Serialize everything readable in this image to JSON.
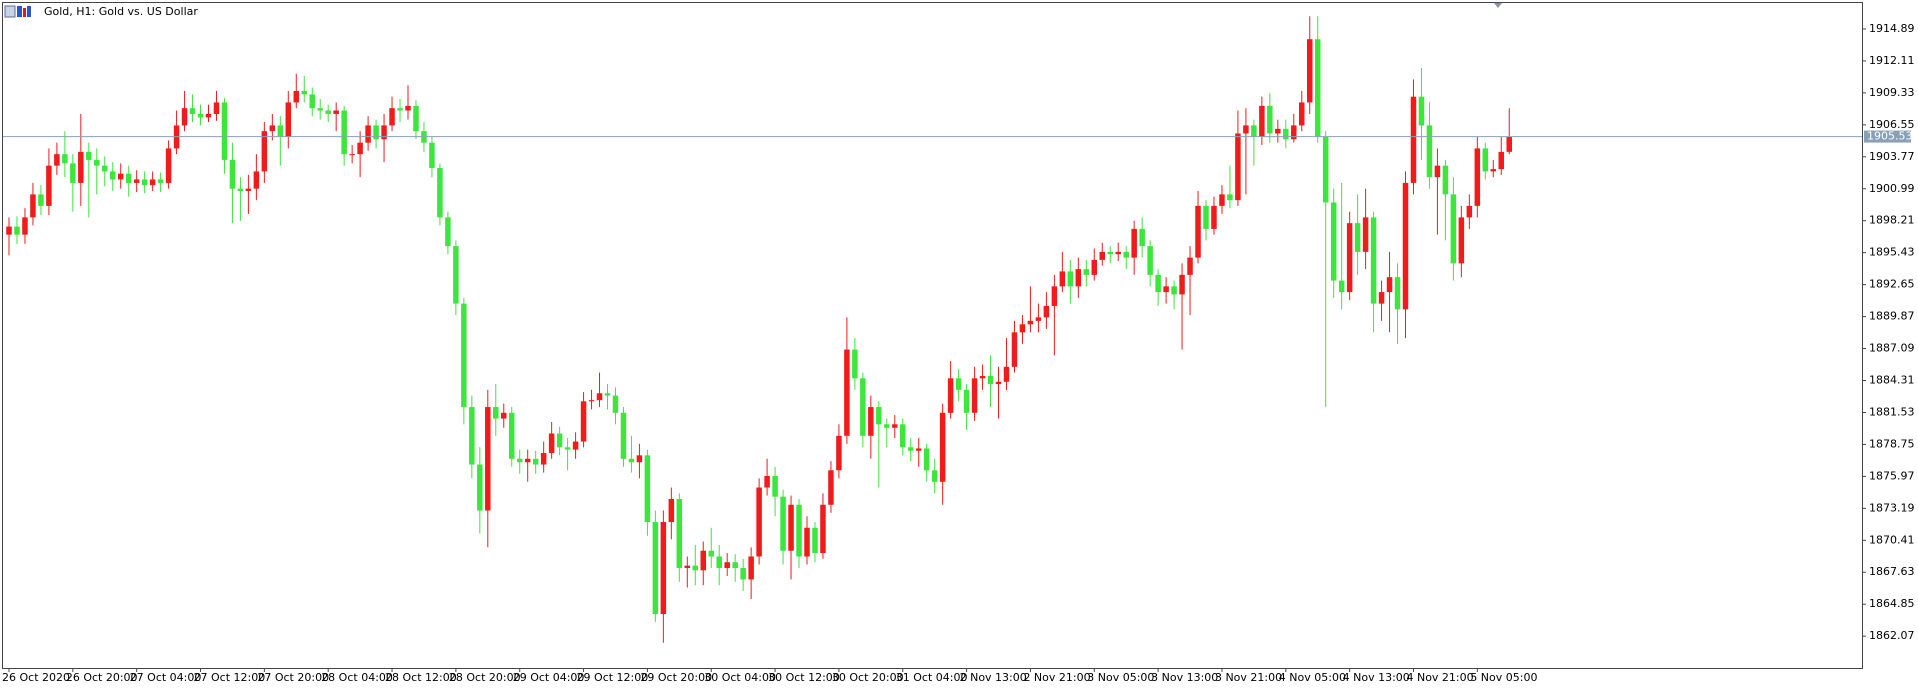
{
  "chart_data": {
    "type": "candlestick",
    "title": "Gold, H1:  Gold vs. US Dollar",
    "up_color": "#f01b1b",
    "down_color": "#3ce63c",
    "price_line_color": "#8aa0b8",
    "grid": false,
    "ylim": [
      1859.3,
      1917.15
    ],
    "yticks": [
      1914.89,
      1912.11,
      1909.33,
      1906.55,
      1903.77,
      1900.99,
      1898.21,
      1895.43,
      1892.65,
      1889.87,
      1887.09,
      1884.31,
      1881.53,
      1878.75,
      1875.97,
      1873.19,
      1870.41,
      1867.63,
      1864.85,
      1862.07
    ],
    "categories": [
      "26 Oct 2020",
      null,
      null,
      null,
      null,
      null,
      null,
      null,
      "26 Oct 20:00",
      null,
      null,
      null,
      null,
      null,
      null,
      null,
      "27 Oct 04:00",
      null,
      null,
      null,
      null,
      null,
      null,
      null,
      "27 Oct 12:00",
      null,
      null,
      null,
      null,
      null,
      null,
      null,
      "27 Oct 20:00",
      null,
      null,
      null,
      null,
      null,
      null,
      null,
      "28 Oct 04:00",
      null,
      null,
      null,
      null,
      null,
      null,
      null,
      "28 Oct 12:00",
      null,
      null,
      null,
      null,
      null,
      null,
      null,
      "28 Oct 20:00",
      null,
      null,
      null,
      null,
      null,
      null,
      null,
      "29 Oct 04:00",
      null,
      null,
      null,
      null,
      null,
      null,
      null,
      "29 Oct 12:00",
      null,
      null,
      null,
      null,
      null,
      null,
      null,
      "29 Oct 20:00",
      null,
      null,
      null,
      null,
      null,
      null,
      null,
      "30 Oct 04:00",
      null,
      null,
      null,
      null,
      null,
      null,
      null,
      "30 Oct 12:00",
      null,
      null,
      null,
      null,
      null,
      null,
      null,
      "30 Oct 20:00",
      null,
      null,
      null,
      null,
      null,
      null,
      null,
      "31 Oct 04:00",
      null,
      null,
      null,
      null,
      null,
      null,
      null,
      "2 Nov 13:00",
      null,
      null,
      null,
      null,
      null,
      null,
      null,
      "2 Nov 21:00",
      null,
      null,
      null,
      null,
      null,
      null,
      null,
      "3 Nov 05:00",
      null,
      null,
      null,
      null,
      null,
      null,
      null,
      "3 Nov 13:00",
      null,
      null,
      null,
      null,
      null,
      null,
      null,
      "3 Nov 21:00",
      null,
      null,
      null,
      null,
      null,
      null,
      null,
      "4 Nov 05:00",
      null,
      null,
      null,
      null,
      null,
      null,
      null,
      "4 Nov 13:00",
      null,
      null,
      null,
      null,
      null,
      null,
      null,
      "4 Nov 21:00",
      null,
      null,
      null,
      null,
      null,
      null,
      null,
      "5 Nov 05:00",
      null,
      null,
      null,
      null
    ],
    "open": [
      1897.0,
      1897.7,
      1897.0,
      1898.5,
      1900.5,
      1899.5,
      1903.0,
      1904.0,
      1903.2,
      1901.5,
      1904.2,
      1903.5,
      1903.0,
      1902.5,
      1901.8,
      1902.3,
      1901.5,
      1901.8,
      1901.3,
      1901.8,
      1901.5,
      1904.5,
      1906.5,
      1908.0,
      1907.5,
      1907.2,
      1907.5,
      1908.5,
      1903.5,
      1901.0,
      1900.8,
      1901.0,
      1902.5,
      1906.0,
      1906.5,
      1905.5,
      1908.5,
      1909.5,
      1909.2,
      1908.0,
      1907.8,
      1907.5,
      1907.8,
      1904.0,
      1904.0,
      1905.0,
      1906.5,
      1905.3,
      1906.5,
      1908.0,
      1907.8,
      1908.2,
      1906.0,
      1905.0,
      1902.8,
      1898.5,
      1896.0,
      1891.0,
      1882.0,
      1877.0,
      1873.0,
      1882.0,
      1881.0,
      1881.5,
      1877.5,
      1877.2,
      1877.5,
      1877.0,
      1878.0,
      1879.7,
      1878.5,
      1878.3,
      1879.0,
      1882.5,
      1882.6,
      1883.2,
      1883.0,
      1881.5,
      1877.5,
      1877.2,
      1877.8,
      1872.0,
      1864.0,
      1872.0,
      1874.0,
      1868.0,
      1868.2,
      1867.8,
      1869.5,
      1869.0,
      1868.0,
      1868.5,
      1868.0,
      1867.0,
      1869.0,
      1875.0,
      1876.0,
      1874.2,
      1869.5,
      1873.5,
      1869.0,
      1871.5,
      1869.3,
      1873.5,
      1876.5,
      1879.5,
      1887.0,
      1884.5,
      1879.5,
      1882.0,
      1880.5,
      1880.2,
      1880.5,
      1878.5,
      1878.2,
      1878.4,
      1876.5,
      1875.5,
      1881.5,
      1884.5,
      1883.5,
      1881.5,
      1884.5,
      1884.7,
      1884.0,
      1884.2,
      1885.5,
      1888.5,
      1889.2,
      1889.5,
      1889.8,
      1890.8,
      1892.5,
      1893.8,
      1892.5,
      1894.0,
      1893.5,
      1894.8,
      1895.5,
      1895.3,
      1895.5,
      1895.0,
      1897.5,
      1896.0,
      1893.5,
      1892.0,
      1892.5,
      1891.8,
      1893.5,
      1895.0,
      1899.5,
      1897.5,
      1899.5,
      1900.5,
      1900.0,
      1905.8,
      1906.5,
      1905.5,
      1908.2,
      1905.8,
      1906.2,
      1905.3,
      1906.5,
      1908.5,
      1914.0,
      1905.5,
      1899.8,
      1893.0,
      1892.0,
      1898.0,
      1895.5,
      1898.5,
      1891.0,
      1892.0,
      1893.3,
      1890.5,
      1901.5,
      1909.0,
      1906.5,
      1902.0,
      1903.0,
      1900.5,
      1894.5,
      1898.5,
      1899.5,
      1904.5,
      1902.5,
      1902.7,
      1904.2
    ],
    "high": [
      1898.5,
      1898.6,
      1899.3,
      1901.5,
      1901.3,
      1904.5,
      1905.0,
      1906.0,
      1904.0,
      1907.5,
      1905.0,
      1904.5,
      1903.8,
      1903.3,
      1903.2,
      1903.0,
      1902.6,
      1902.5,
      1902.5,
      1902.4,
      1905.2,
      1907.8,
      1909.5,
      1909.2,
      1908.3,
      1908.3,
      1909.5,
      1908.9,
      1905.0,
      1902.0,
      1902.2,
      1904.0,
      1906.8,
      1907.5,
      1907.3,
      1909.5,
      1911.0,
      1910.8,
      1909.8,
      1908.8,
      1908.3,
      1908.5,
      1908.2,
      1904.8,
      1906.0,
      1907.3,
      1907.0,
      1907.5,
      1909.0,
      1908.8,
      1910.0,
      1908.7,
      1906.8,
      1905.5,
      1903.2,
      1899.0,
      1896.5,
      1891.5,
      1883.0,
      1878.5,
      1883.5,
      1884.0,
      1882.3,
      1882.0,
      1878.3,
      1878.3,
      1878.2,
      1879.0,
      1880.7,
      1880.3,
      1879.3,
      1879.8,
      1883.3,
      1883.5,
      1885.0,
      1884.0,
      1883.7,
      1882.0,
      1879.5,
      1878.8,
      1878.3,
      1873.0,
      1873.0,
      1875.0,
      1874.5,
      1869.0,
      1870.0,
      1870.3,
      1871.5,
      1870.0,
      1869.3,
      1869.2,
      1868.8,
      1869.8,
      1875.8,
      1877.5,
      1876.8,
      1874.8,
      1874.3,
      1874.0,
      1872.5,
      1872.0,
      1874.5,
      1877.3,
      1880.5,
      1889.8,
      1888.0,
      1885.0,
      1883.0,
      1882.5,
      1881.0,
      1881.3,
      1881.0,
      1879.3,
      1879.3,
      1878.8,
      1877.5,
      1882.3,
      1886.0,
      1885.3,
      1884.0,
      1885.5,
      1885.7,
      1886.5,
      1885.5,
      1888.0,
      1889.5,
      1890.0,
      1892.5,
      1891.0,
      1892.0,
      1893.5,
      1895.5,
      1894.8,
      1895.0,
      1894.8,
      1895.8,
      1896.3,
      1896.0,
      1896.3,
      1896.0,
      1898.2,
      1898.5,
      1896.5,
      1894.0,
      1893.3,
      1893.0,
      1894.5,
      1896.0,
      1900.8,
      1900.0,
      1900.3,
      1901.3,
      1903.0,
      1907.8,
      1908.0,
      1907.0,
      1909.0,
      1909.3,
      1907.0,
      1907.0,
      1907.5,
      1909.5,
      1916.0,
      1916.0,
      1906.0,
      1901.0,
      1901.5,
      1899.0,
      1900.5,
      1901.0,
      1899.0,
      1893.0,
      1895.5,
      1894.5,
      1902.5,
      1910.5,
      1911.5,
      1908.5,
      1904.5,
      1903.5,
      1902.0,
      1899.5,
      1900.5,
      1905.5,
      1905.0,
      1903.5,
      1905.5,
      1908.0
    ],
    "low": [
      1895.2,
      1896.2,
      1896.2,
      1897.8,
      1898.7,
      1898.7,
      1902.2,
      1902.0,
      1899.0,
      1899.5,
      1898.5,
      1900.5,
      1901.2,
      1900.8,
      1901.0,
      1900.3,
      1900.7,
      1900.6,
      1900.8,
      1900.7,
      1901.0,
      1904.0,
      1906.0,
      1906.8,
      1906.5,
      1906.8,
      1906.9,
      1902.3,
      1898.0,
      1898.2,
      1898.8,
      1900.0,
      1901.5,
      1905.2,
      1903.0,
      1904.5,
      1908.0,
      1908.5,
      1907.3,
      1907.0,
      1906.8,
      1906.0,
      1903.0,
      1903.2,
      1902.0,
      1904.3,
      1904.5,
      1903.3,
      1906.0,
      1906.8,
      1907.0,
      1905.3,
      1904.2,
      1902.0,
      1897.8,
      1895.3,
      1890.0,
      1880.5,
      1875.8,
      1871.0,
      1869.8,
      1879.5,
      1880.2,
      1876.8,
      1876.2,
      1875.5,
      1876.2,
      1876.3,
      1877.5,
      1877.8,
      1876.5,
      1877.5,
      1878.5,
      1881.8,
      1882.0,
      1881.8,
      1880.5,
      1876.8,
      1876.3,
      1875.8,
      1870.8,
      1863.3,
      1861.5,
      1870.5,
      1866.8,
      1866.3,
      1866.5,
      1866.5,
      1868.0,
      1866.5,
      1867.3,
      1866.8,
      1866.0,
      1865.3,
      1868.3,
      1874.3,
      1872.5,
      1868.3,
      1867.0,
      1868.0,
      1868.3,
      1868.5,
      1868.8,
      1872.8,
      1875.8,
      1878.8,
      1883.5,
      1878.5,
      1877.5,
      1875.0,
      1878.5,
      1879.3,
      1877.8,
      1877.3,
      1876.8,
      1875.5,
      1874.5,
      1873.5,
      1881.0,
      1882.5,
      1880.0,
      1880.8,
      1883.5,
      1882.0,
      1881.0,
      1883.5,
      1885.0,
      1887.5,
      1888.5,
      1888.5,
      1888.8,
      1886.5,
      1892.0,
      1891.0,
      1891.5,
      1892.5,
      1893.0,
      1894.3,
      1894.5,
      1894.7,
      1894.0,
      1893.5,
      1895.0,
      1892.5,
      1890.8,
      1891.0,
      1890.5,
      1887.0,
      1890.0,
      1894.5,
      1896.5,
      1897.0,
      1898.8,
      1899.3,
      1899.5,
      1900.5,
      1903.0,
      1904.8,
      1905.0,
      1905.0,
      1904.5,
      1905.0,
      1906.0,
      1907.5,
      1905.0,
      1882.0,
      1891.5,
      1890.5,
      1891.3,
      1893.5,
      1894.0,
      1888.5,
      1889.5,
      1888.5,
      1887.5,
      1888.0,
      1900.5,
      1903.5,
      1901.0,
      1897.0,
      1896.5,
      1893.0,
      1893.3,
      1897.5,
      1898.5,
      1901.8,
      1902.0,
      1902.2,
      1904.0
    ],
    "close": [
      1897.7,
      1897.0,
      1898.5,
      1900.5,
      1899.5,
      1903.0,
      1904.0,
      1903.2,
      1901.5,
      1904.2,
      1903.5,
      1903.0,
      1902.5,
      1901.8,
      1902.3,
      1901.5,
      1901.8,
      1901.3,
      1901.8,
      1901.5,
      1904.5,
      1906.5,
      1908.0,
      1907.5,
      1907.2,
      1907.5,
      1908.5,
      1903.5,
      1901.0,
      1900.8,
      1901.0,
      1902.5,
      1906.0,
      1906.5,
      1905.5,
      1908.5,
      1909.5,
      1909.2,
      1908.0,
      1907.8,
      1907.5,
      1907.8,
      1904.0,
      1904.0,
      1905.0,
      1906.5,
      1905.3,
      1906.5,
      1908.0,
      1907.8,
      1908.2,
      1906.0,
      1905.0,
      1902.8,
      1898.5,
      1896.0,
      1891.0,
      1882.0,
      1877.0,
      1873.0,
      1882.0,
      1881.0,
      1881.5,
      1877.5,
      1877.2,
      1877.5,
      1877.0,
      1878.0,
      1879.7,
      1878.5,
      1878.3,
      1879.0,
      1882.5,
      1882.6,
      1883.2,
      1883.0,
      1881.5,
      1877.5,
      1877.2,
      1877.8,
      1872.0,
      1864.0,
      1872.0,
      1874.0,
      1868.0,
      1868.2,
      1867.8,
      1869.5,
      1869.0,
      1868.0,
      1868.5,
      1868.0,
      1867.0,
      1869.0,
      1875.0,
      1876.0,
      1874.2,
      1869.5,
      1873.5,
      1869.0,
      1871.5,
      1869.3,
      1873.5,
      1876.5,
      1879.5,
      1887.0,
      1884.5,
      1879.5,
      1882.0,
      1880.5,
      1880.2,
      1880.5,
      1878.5,
      1878.2,
      1878.4,
      1876.5,
      1875.5,
      1881.5,
      1884.5,
      1883.5,
      1881.5,
      1884.5,
      1884.7,
      1884.0,
      1884.2,
      1885.5,
      1888.5,
      1889.2,
      1889.5,
      1889.8,
      1890.8,
      1892.5,
      1893.8,
      1892.5,
      1894.0,
      1893.5,
      1894.8,
      1895.5,
      1895.3,
      1895.5,
      1895.0,
      1897.5,
      1896.0,
      1893.5,
      1892.0,
      1892.5,
      1891.8,
      1893.5,
      1895.0,
      1899.5,
      1897.5,
      1899.5,
      1900.5,
      1900.0,
      1905.8,
      1906.5,
      1905.5,
      1908.2,
      1905.8,
      1906.2,
      1905.3,
      1906.5,
      1908.5,
      1914.0,
      1905.5,
      1899.8,
      1893.0,
      1892.0,
      1898.0,
      1895.5,
      1898.5,
      1891.0,
      1892.0,
      1893.3,
      1890.5,
      1901.5,
      1909.0,
      1906.5,
      1902.0,
      1903.0,
      1900.5,
      1894.5,
      1898.5,
      1899.5,
      1904.5,
      1902.5,
      1902.7,
      1904.2,
      1905.53
    ]
  }
}
